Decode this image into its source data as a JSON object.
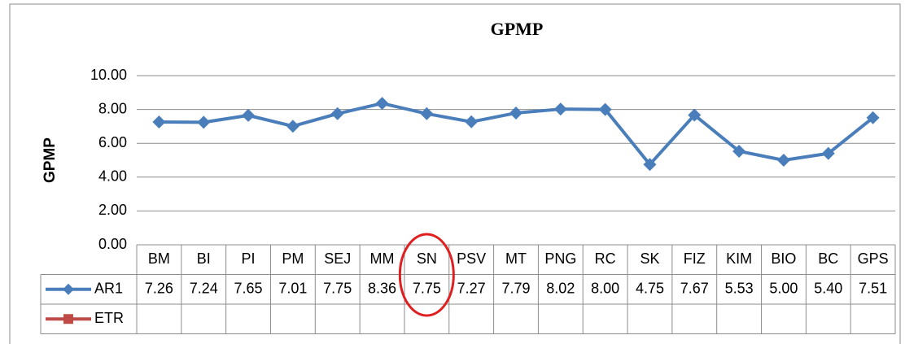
{
  "chart_data": {
    "type": "line",
    "title": "GPMP",
    "y_label": "GPMP",
    "categories": [
      "BM",
      "BI",
      "PI",
      "PM",
      "SEJ",
      "MM",
      "SN",
      "PSV",
      "MT",
      "PNG",
      "RC",
      "SK",
      "FIZ",
      "KIM",
      "BIO",
      "BC",
      "GPS"
    ],
    "series": [
      {
        "name": "AR1",
        "color": "#4a7ebb",
        "values": [
          7.26,
          7.24,
          7.65,
          7.01,
          7.75,
          8.36,
          7.75,
          7.27,
          7.79,
          8.02,
          8.0,
          4.75,
          7.67,
          5.53,
          5.0,
          5.4,
          7.51
        ],
        "value_labels": [
          "7.26",
          "7.24",
          "7.65",
          "7.01",
          "7.75",
          "8.36",
          "7.75",
          "7.27",
          "7.79",
          "8.02",
          "8.00",
          "4.75",
          "7.67",
          "5.53",
          "5.00",
          "5.40",
          "7.51"
        ]
      },
      {
        "name": "ETR",
        "color": "#be4b48",
        "values": [
          null,
          null,
          null,
          null,
          null,
          null,
          null,
          null,
          null,
          null,
          null,
          null,
          null,
          null,
          null,
          null,
          null
        ]
      }
    ],
    "ylim": [
      0,
      10
    ],
    "yticks": [
      {
        "value": 0,
        "label": "0.00"
      },
      {
        "value": 2,
        "label": "2.00"
      },
      {
        "value": 4,
        "label": "4.00"
      },
      {
        "value": 6,
        "label": "6.00"
      },
      {
        "value": 8,
        "label": "8.00"
      },
      {
        "value": 10,
        "label": "10.00"
      }
    ],
    "grid": true
  }
}
